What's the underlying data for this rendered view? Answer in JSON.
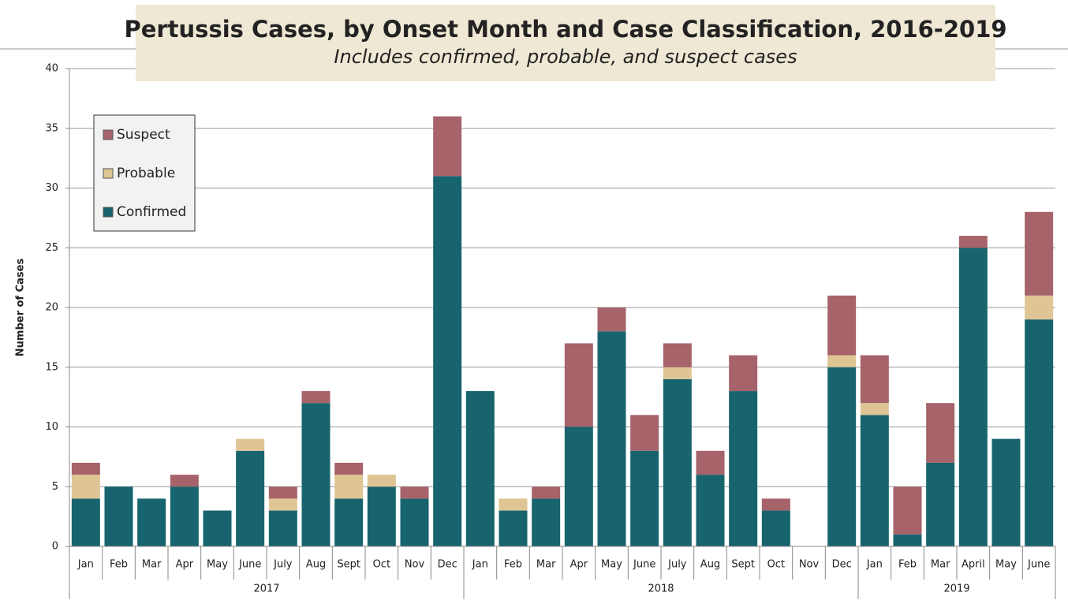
{
  "chart_data": {
    "type": "stacked_bar",
    "title": "Pertussis Cases, by Onset Month and Case Classification, 2016-2019",
    "subtitle": "Includes confirmed, probable, and suspect cases",
    "y_label": "Number of Cases",
    "category_groups": [
      {
        "name": "2017",
        "categories": [
          "Jan",
          "Feb",
          "Mar",
          "Apr",
          "May",
          "June",
          "July",
          "Aug",
          "Sept",
          "Oct",
          "Nov",
          "Dec"
        ]
      },
      {
        "name": "2018",
        "categories": [
          "Jan",
          "Feb",
          "Mar",
          "Apr",
          "May",
          "June",
          "July",
          "Aug",
          "Sept",
          "Oct",
          "Nov",
          "Dec"
        ]
      },
      {
        "name": "2019",
        "categories": [
          "Jan",
          "Feb",
          "Mar",
          "April",
          "May",
          "June"
        ]
      }
    ],
    "series": [
      {
        "name": "Confirmed",
        "color": "#17646e",
        "values": [
          4,
          5,
          4,
          5,
          3,
          8,
          3,
          12,
          4,
          5,
          4,
          31,
          13,
          3,
          4,
          10,
          18,
          8,
          14,
          6,
          13,
          3,
          0,
          15,
          11,
          1,
          7,
          25,
          9,
          19
        ]
      },
      {
        "name": "Probable",
        "color": "#dfc594",
        "values": [
          2,
          0,
          0,
          0,
          0,
          1,
          1,
          0,
          2,
          1,
          0,
          0,
          0,
          1,
          0,
          0,
          0,
          0,
          1,
          0,
          0,
          0,
          0,
          1,
          1,
          0,
          0,
          0,
          0,
          2
        ]
      },
      {
        "name": "Suspect",
        "color": "#a6636a",
        "values": [
          1,
          0,
          0,
          1,
          0,
          0,
          1,
          1,
          1,
          0,
          1,
          5,
          0,
          0,
          1,
          7,
          2,
          3,
          2,
          2,
          3,
          1,
          0,
          5,
          4,
          4,
          5,
          1,
          0,
          7
        ]
      }
    ],
    "ylim": [
      0,
      40
    ],
    "yticks": [
      0,
      5,
      10,
      15,
      20,
      25,
      30,
      35,
      40
    ],
    "grid": true,
    "legend": "upper left"
  }
}
